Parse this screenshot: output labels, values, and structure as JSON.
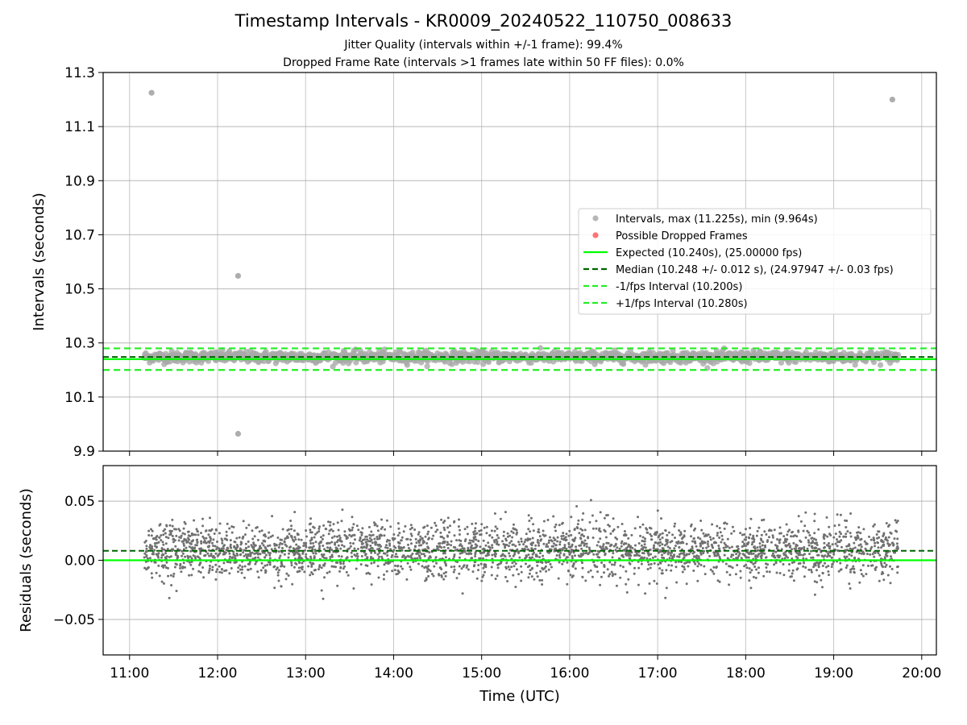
{
  "chart_data": [
    {
      "type": "scatter",
      "title": "Timestamp Intervals - KR0009_20240522_110750_008633",
      "subtitle_lines": [
        "Jitter Quality (intervals within +/-1 frame): 99.4%",
        "Dropped Frame Rate (intervals >1 frames late within 50 FF files): 0.0%"
      ],
      "xlabel": "",
      "ylabel": "Intervals (seconds)",
      "xlim": [
        "10:42",
        "20:10"
      ],
      "ylim": [
        9.9,
        11.3
      ],
      "yticks": [
        "9.9",
        "10.1",
        "10.3",
        "10.5",
        "10.7",
        "10.9",
        "11.1",
        "11.3"
      ],
      "grid": true,
      "legend_position": "center-right",
      "legend": [
        {
          "label": "Intervals, max (11.225s), min (9.964s)",
          "marker": "dot",
          "color": "#a9a9a9"
        },
        {
          "label": "Possible Dropped Frames",
          "marker": "dot",
          "color": "#ff5a5a"
        },
        {
          "label": "Expected (10.240s), (25.00000 fps)",
          "marker": "solid",
          "color": "#00ff00"
        },
        {
          "label": "Median (10.248 +/- 0.012 s), (24.97947 +/- 0.03 fps)",
          "marker": "dashed",
          "color": "#006400"
        },
        {
          "label": "-1/fps Interval (10.200s)",
          "marker": "dashed",
          "color": "#22ee22"
        },
        {
          "label": "+1/fps Interval (10.280s)",
          "marker": "dashed",
          "color": "#22ee22"
        }
      ],
      "reference_lines": {
        "expected": 10.24,
        "median": 10.248,
        "minus_1fps": 10.2,
        "plus_1fps": 10.28
      },
      "series": [
        {
          "name": "Intervals, max (11.225s), min (9.964s)",
          "time_range": [
            "11:10",
            "19:44"
          ],
          "band_center": 10.248,
          "band_spread": 0.012,
          "outliers": [
            {
              "x": "11:15",
              "y": 11.225
            },
            {
              "x": "12:14",
              "y": 10.548
            },
            {
              "x": "12:14",
              "y": 9.964
            },
            {
              "x": "19:40",
              "y": 11.2
            }
          ]
        }
      ]
    },
    {
      "type": "scatter",
      "xlabel": "Time (UTC)",
      "ylabel": "Residuals (seconds)",
      "xlim": [
        "10:42",
        "20:10"
      ],
      "ylim": [
        -0.08,
        0.08
      ],
      "yticks": [
        "−0.05",
        "0.00",
        "0.05"
      ],
      "xticks": [
        "11:00",
        "12:00",
        "13:00",
        "14:00",
        "15:00",
        "16:00",
        "17:00",
        "18:00",
        "19:00",
        "20:00"
      ],
      "grid": true,
      "reference_lines": {
        "zero": 0.0,
        "median_offset": 0.008
      },
      "series": [
        {
          "time_range": [
            "11:10",
            "19:44"
          ],
          "center": 0.008,
          "spread": 0.012,
          "point_count": 3000
        }
      ]
    }
  ],
  "colors": {
    "intervals": "#a9a9a9",
    "residuals": "#707070",
    "dropped": "#ff5a5a",
    "expected": "#00ff00",
    "median": "#006400",
    "fps_bounds": "#22ee22",
    "grid": "#b0b0b0"
  }
}
